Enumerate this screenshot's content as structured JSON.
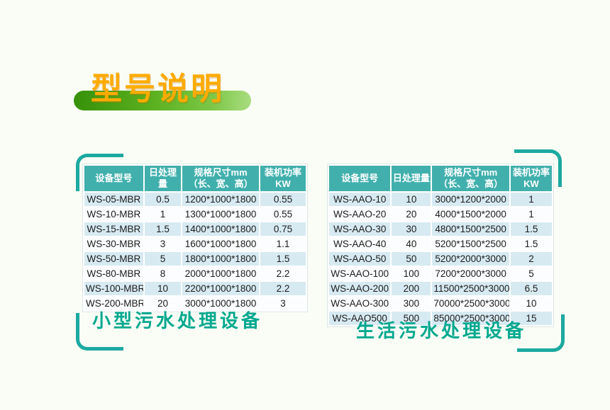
{
  "slide": {
    "title": "型号说明"
  },
  "colors": {
    "background": "#FAFDF6",
    "banner_dark": "#36910A",
    "banner_mid": "#5CB120",
    "banner_light": "#7CC746",
    "title_orange": "#FFAB00",
    "header_teal": "#41B0AD",
    "row_light": "#D7EAF2",
    "row_white": "#FBFDFE",
    "caption_teal": "#00A88E",
    "bracket_teal": "#1CA9A1"
  },
  "tables": [
    {
      "name": "small-sewage-equipment",
      "caption": "小型污水处理设备",
      "headers": [
        {
          "line1": "设备型号",
          "line2": ""
        },
        {
          "line1": "日处理量",
          "line2": ""
        },
        {
          "line1": "规格尺寸mm",
          "line2": "（长、宽、高）"
        },
        {
          "line1": "装机功率",
          "line2": "KW"
        }
      ],
      "rows": [
        [
          "WS-05-MBR",
          "0.5",
          "1200*1000*1800",
          "0.55"
        ],
        [
          "WS-10-MBR",
          "1",
          "1300*1000*1800",
          "0.55"
        ],
        [
          "WS-15-MBR",
          "1.5",
          "1400*1000*1800",
          "0.75"
        ],
        [
          "WS-30-MBR",
          "3",
          "1600*1000*1800",
          "1.1"
        ],
        [
          "WS-50-MBR",
          "5",
          "1800*1000*1800",
          "1.5"
        ],
        [
          "WS-80-MBR",
          "8",
          "2000*1000*1800",
          "2.2"
        ],
        [
          "WS-100-MBR",
          "10",
          "2200*1000*1800",
          "2.2"
        ],
        [
          "WS-200-MBR",
          "20",
          "3000*1000*1800",
          "3"
        ]
      ]
    },
    {
      "name": "domestic-sewage-equipment",
      "caption": "生活污水处理设备",
      "headers": [
        {
          "line1": "设备型号",
          "line2": ""
        },
        {
          "line1": "日处理量",
          "line2": ""
        },
        {
          "line1": "规格尺寸mm",
          "line2": "（长、宽、高）"
        },
        {
          "line1": "装机功率",
          "line2": "KW"
        }
      ],
      "rows": [
        [
          "WS-AAO-10",
          "10",
          "3000*1200*2000",
          "1"
        ],
        [
          "WS-AAO-20",
          "20",
          "4000*1500*2000",
          "1"
        ],
        [
          "WS-AAO-30",
          "30",
          "4800*1500*2500",
          "1.5"
        ],
        [
          "WS-AAO-40",
          "40",
          "5200*1500*2500",
          "1.5"
        ],
        [
          "WS-AAO-50",
          "50",
          "5200*2000*3000",
          "2"
        ],
        [
          "WS-AAO-100",
          "100",
          "7200*2000*3000",
          "5"
        ],
        [
          "WS-AAO-200",
          "200",
          "11500*2500*3000",
          "6.5"
        ],
        [
          "WS-AAO-300",
          "300",
          "70000*2500*3000",
          "10"
        ],
        [
          "WS-AAO500",
          "500",
          "85000*2500*3000",
          "15"
        ]
      ]
    }
  ]
}
